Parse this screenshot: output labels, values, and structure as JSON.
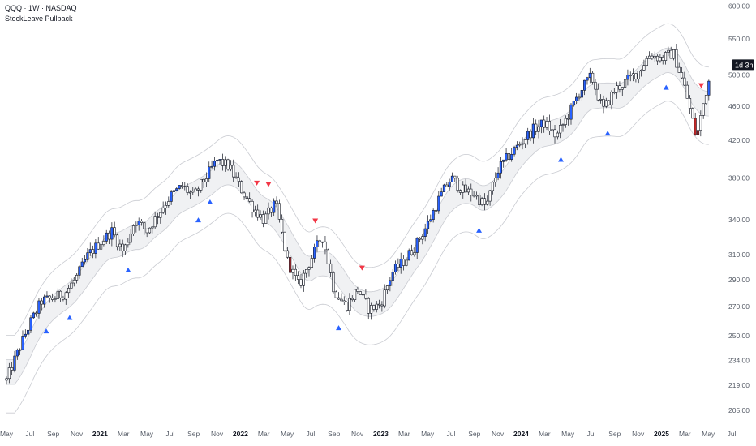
{
  "header": {
    "symbol_line": "QQQ · 1W · NASDAQ",
    "indicator_name": "StockLeave Pullback"
  },
  "badge": {
    "label": "1d 3h"
  },
  "colors": {
    "up_candle": "#2962ff",
    "down_candle": "#c62828",
    "neutral_candle": "#ffffff",
    "candle_outline": "#131722",
    "band_line": "#c9cbd1",
    "band_fill": "#f0f1f3",
    "buy_marker": "#2962ff",
    "sell_marker": "#f23645",
    "badge_bg": "#131722"
  },
  "chart_data": {
    "type": "candlestick",
    "title": "QQQ · 1W · NASDAQ",
    "y_scale": "log",
    "ylim": [
      198,
      610
    ],
    "y_ticks": [
      205,
      219,
      234,
      250,
      270,
      290,
      310,
      340,
      380,
      420,
      460,
      500,
      550,
      600
    ],
    "y_tick_labels": [
      "205.00",
      "219.00",
      "234.00",
      "250.00",
      "270.00",
      "290.00",
      "310.00",
      "340.00",
      "380.00",
      "420.00",
      "460.00",
      "500.00",
      "550.00",
      "600.00"
    ],
    "x_range": [
      "2020-05",
      "2025-07"
    ],
    "x_labels": [
      {
        "label": "May",
        "date": "2020-05"
      },
      {
        "label": "Jul",
        "date": "2020-07"
      },
      {
        "label": "Sep",
        "date": "2020-09"
      },
      {
        "label": "Nov",
        "date": "2020-11"
      },
      {
        "label": "2021",
        "date": "2021-01",
        "year": true
      },
      {
        "label": "Mar",
        "date": "2021-03"
      },
      {
        "label": "May",
        "date": "2021-05"
      },
      {
        "label": "Jul",
        "date": "2021-07"
      },
      {
        "label": "Sep",
        "date": "2021-09"
      },
      {
        "label": "Nov",
        "date": "2021-11"
      },
      {
        "label": "2022",
        "date": "2022-01",
        "year": true
      },
      {
        "label": "Mar",
        "date": "2022-03"
      },
      {
        "label": "May",
        "date": "2022-05"
      },
      {
        "label": "Jul",
        "date": "2022-07"
      },
      {
        "label": "Sep",
        "date": "2022-09"
      },
      {
        "label": "Nov",
        "date": "2022-11"
      },
      {
        "label": "2023",
        "date": "2023-01",
        "year": true
      },
      {
        "label": "Mar",
        "date": "2023-03"
      },
      {
        "label": "May",
        "date": "2023-05"
      },
      {
        "label": "Jul",
        "date": "2023-07"
      },
      {
        "label": "Sep",
        "date": "2023-09"
      },
      {
        "label": "Nov",
        "date": "2023-11"
      },
      {
        "label": "2024",
        "date": "2024-01",
        "year": true
      },
      {
        "label": "Mar",
        "date": "2024-03"
      },
      {
        "label": "May",
        "date": "2024-05"
      },
      {
        "label": "Jul",
        "date": "2024-07"
      },
      {
        "label": "Sep",
        "date": "2024-09"
      },
      {
        "label": "Nov",
        "date": "2024-11"
      },
      {
        "label": "2025",
        "date": "2025-01",
        "year": true
      },
      {
        "label": "Mar",
        "date": "2025-03"
      },
      {
        "label": "May",
        "date": "2025-05"
      },
      {
        "label": "Jul",
        "date": "2025-07"
      }
    ],
    "price_path": [
      [
        "2020-05",
        222
      ],
      [
        "2020-07",
        258
      ],
      [
        "2020-08",
        274
      ],
      [
        "2020-09",
        276
      ],
      [
        "2020-10",
        280
      ],
      [
        "2020-11",
        292
      ],
      [
        "2020-12",
        310
      ],
      [
        "2021-02",
        330
      ],
      [
        "2021-03",
        312
      ],
      [
        "2021-04",
        340
      ],
      [
        "2021-05",
        330
      ],
      [
        "2021-06",
        346
      ],
      [
        "2021-07",
        362
      ],
      [
        "2021-08",
        372
      ],
      [
        "2021-09",
        362
      ],
      [
        "2021-10",
        380
      ],
      [
        "2021-11",
        398
      ],
      [
        "2021-12",
        392
      ],
      [
        "2022-01",
        370
      ],
      [
        "2022-02",
        352
      ],
      [
        "2022-03",
        340
      ],
      [
        "2022-04",
        355
      ],
      [
        "2022-05",
        305
      ],
      [
        "2022-06",
        285
      ],
      [
        "2022-07",
        306
      ],
      [
        "2022-08",
        326
      ],
      [
        "2022-09",
        282
      ],
      [
        "2022-10",
        270
      ],
      [
        "2022-11",
        283
      ],
      [
        "2022-12",
        268
      ],
      [
        "2023-01",
        272
      ],
      [
        "2023-02",
        296
      ],
      [
        "2023-03",
        305
      ],
      [
        "2023-04",
        318
      ],
      [
        "2023-05",
        336
      ],
      [
        "2023-06",
        360
      ],
      [
        "2023-07",
        380
      ],
      [
        "2023-08",
        368
      ],
      [
        "2023-09",
        364
      ],
      [
        "2023-10",
        352
      ],
      [
        "2023-11",
        388
      ],
      [
        "2023-12",
        404
      ],
      [
        "2024-01",
        418
      ],
      [
        "2024-02",
        432
      ],
      [
        "2024-03",
        440
      ],
      [
        "2024-04",
        424
      ],
      [
        "2024-05",
        448
      ],
      [
        "2024-06",
        478
      ],
      [
        "2024-07",
        498
      ],
      [
        "2024-08",
        455
      ],
      [
        "2024-09",
        480
      ],
      [
        "2024-10",
        492
      ],
      [
        "2024-11",
        504
      ],
      [
        "2024-12",
        528
      ],
      [
        "2025-01",
        522
      ],
      [
        "2025-02",
        530
      ],
      [
        "2025-03",
        482
      ],
      [
        "2025-04",
        422
      ],
      [
        "2025-05",
        492
      ]
    ],
    "bands": {
      "mid_offset_pct": 0,
      "inner_width_pct": 2.5,
      "outer_width_pct": 11
    },
    "buy_signals": [
      "2020-08",
      "2020-10",
      "2021-03",
      "2021-09",
      "2021-10",
      "2022-09",
      "2023-09",
      "2024-04",
      "2024-08",
      "2025-01"
    ],
    "sell_signals": [
      "2022-02",
      "2022-03",
      "2022-07",
      "2022-11",
      "2025-04"
    ],
    "last_price_badge_value": 513
  }
}
